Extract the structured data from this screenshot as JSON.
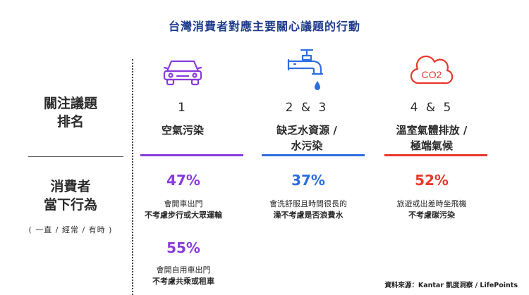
{
  "title": "台灣消費者對應主要關心議題的行動",
  "rows": {
    "issue_label_1": "關注議題",
    "issue_label_2": "排名",
    "behavior_label_1": "消費者",
    "behavior_label_2": "當下行為",
    "behavior_sub": "( 一直 / 經常 / 有時 )"
  },
  "columns": [
    {
      "icon": "car-icon",
      "rank": "1",
      "issue_line1": "空氣污染",
      "issue_line2": "",
      "color": "#8a3bdc",
      "stats": [
        {
          "pct": "47%",
          "line1": "會開車出門",
          "line2": "不考慮步行或大眾運輸"
        },
        {
          "pct": "55%",
          "line1": "會開自用車出門",
          "line2": "不考慮共乘或租車"
        }
      ]
    },
    {
      "icon": "faucet-icon",
      "rank": "2 & 3",
      "issue_line1": "缺乏水資源 /",
      "issue_line2": "水污染",
      "color": "#2f6ee0",
      "stats": [
        {
          "pct": "37%",
          "line1": "會洗舒服且時間很長的",
          "line2": "澡不考慮是否浪費水"
        }
      ]
    },
    {
      "icon": "co2-cloud-icon",
      "rank": "4 & 5",
      "issue_line1": "溫室氣體排放 /",
      "issue_line2": "極端氣候",
      "color": "#e8382c",
      "stats": [
        {
          "pct": "52%",
          "line1": "旅遊或出差時坐飛機",
          "line2": "不考慮碳污染"
        }
      ]
    }
  ],
  "co2_text": "CO2",
  "source": "資料來源：Kantar 凱度洞察 / LifePoints"
}
